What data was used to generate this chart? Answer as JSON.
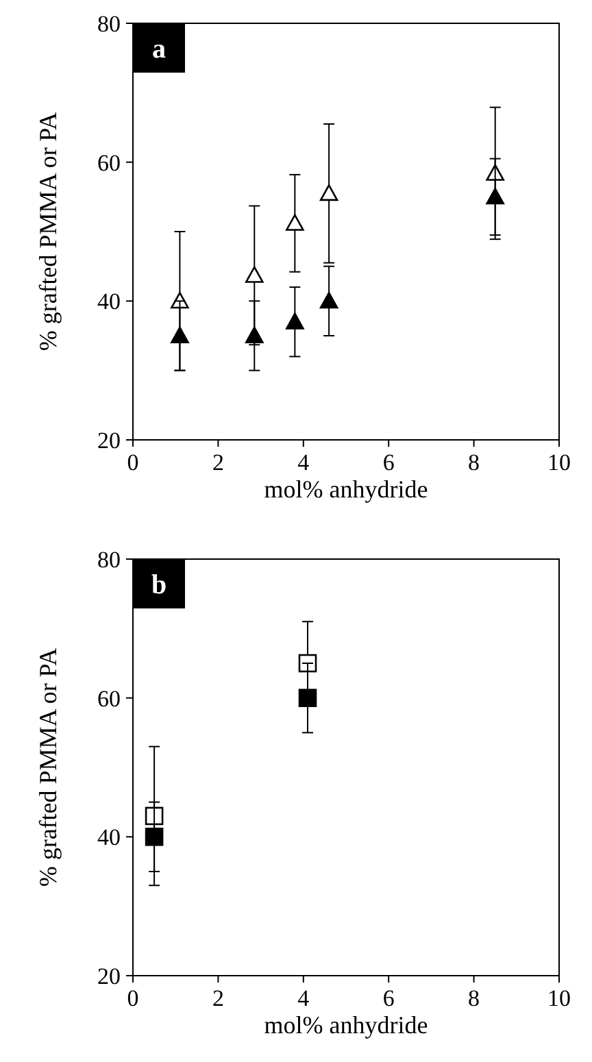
{
  "chart_data": [
    {
      "type": "scatter",
      "annotations": [
        "a"
      ],
      "xlabel": "mol% anhydride",
      "ylabel": "% grafted PMMA or PA",
      "xlim": [
        0,
        10
      ],
      "ylim": [
        20,
        80
      ],
      "xticks": [
        0,
        2,
        4,
        6,
        8,
        10
      ],
      "yticks": [
        20,
        40,
        60,
        80
      ],
      "grid": false,
      "x": [
        1.1,
        2.85,
        3.8,
        4.6,
        8.5
      ],
      "series": [
        {
          "color": "#ffffff",
          "marker": "triangle",
          "values": [
            40,
            43.7,
            51.2,
            55.5,
            58.4
          ],
          "errors": [
            10,
            10,
            7,
            10,
            9.5
          ]
        },
        {
          "color": "#000000",
          "marker": "triangle",
          "values": [
            35,
            35,
            37,
            40,
            55
          ],
          "errors": [
            5,
            5,
            5,
            5,
            5.5
          ]
        }
      ]
    },
    {
      "type": "scatter",
      "annotations": [
        "b"
      ],
      "xlabel": "mol% anhydride",
      "ylabel": "% grafted PMMA or PA",
      "xlim": [
        0,
        10
      ],
      "ylim": [
        20,
        80
      ],
      "xticks": [
        0,
        2,
        4,
        6,
        8,
        10
      ],
      "yticks": [
        20,
        40,
        60,
        80
      ],
      "grid": false,
      "x": [
        0.5,
        4.1
      ],
      "series": [
        {
          "color": "#ffffff",
          "marker": "square",
          "values": [
            43,
            65
          ],
          "errors": [
            10,
            6
          ]
        },
        {
          "color": "#000000",
          "marker": "square",
          "values": [
            40,
            60
          ],
          "errors": [
            5,
            5
          ]
        }
      ]
    }
  ]
}
